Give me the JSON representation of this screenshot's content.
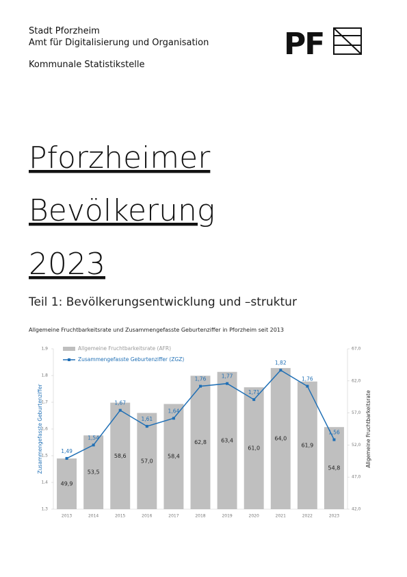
{
  "header": {
    "lines": [
      "Stadt Pforzheim",
      "Amt für Digitalisierung und Organisation",
      "Kommunale Statistikstelle"
    ],
    "logo": "PF"
  },
  "title_lines": [
    "Pforzheimer",
    "Bevölkerung",
    "2023"
  ],
  "subtitle": "Teil 1: Bevölkerungsentwicklung und –struktur",
  "chart_data": {
    "type": "bar",
    "title": "Allgemeine Fruchtbarkeitsrate und Zusammengefasste Geburtenziffer in Pforzheim seit 2013",
    "categories": [
      "2013",
      "2014",
      "2015",
      "2016",
      "2017",
      "2018",
      "2019",
      "2020",
      "2021",
      "2022",
      "2023"
    ],
    "series": [
      {
        "name": "Allgemeine Fruchtbarkeitsrate (AFR)",
        "type": "bar",
        "axis": "y2",
        "color": "#bfbfbf",
        "values": [
          49.9,
          53.5,
          58.6,
          57.0,
          58.4,
          62.8,
          63.4,
          61.0,
          64.0,
          61.9,
          54.8
        ],
        "value_labels": [
          "49,9",
          "53,5",
          "58,6",
          "57,0",
          "58,4",
          "62,8",
          "63,4",
          "61,0",
          "64,0",
          "61,9",
          "54,8"
        ]
      },
      {
        "name": "Zusammengefasste Geburtenziffer (ZGZ)",
        "type": "line",
        "color": "#1f6fb5",
        "values": [
          1.49,
          1.54,
          1.67,
          1.61,
          1.64,
          1.76,
          1.77,
          1.71,
          1.82,
          1.76,
          1.56
        ],
        "value_labels": [
          "1,49",
          "1,54",
          "1,67",
          "1,61",
          "1,64",
          "1,76",
          "1,77",
          "1,71",
          "1,82",
          "1,76",
          "1,56"
        ]
      }
    ],
    "ylabel": "Zusammengefasste Geburtenziffer",
    "y2label": "Allgemeine Fruchtbarkeitsrate",
    "ylim": [
      1.3,
      1.9
    ],
    "yticks": [
      {
        "value": 1.3,
        "label": "1,3"
      },
      {
        "value": 1.4,
        "label": "1,4"
      },
      {
        "value": 1.5,
        "label": "1,5"
      },
      {
        "value": 1.6,
        "label": "1,6"
      },
      {
        "value": 1.7,
        "label": "1,7"
      },
      {
        "value": 1.8,
        "label": "1,8"
      },
      {
        "value": 1.9,
        "label": "1,9"
      }
    ],
    "y2lim": [
      42.0,
      67.0
    ],
    "y2ticks": [
      {
        "value": 42.0,
        "label": "42,0"
      },
      {
        "value": 47.0,
        "label": "47,0"
      },
      {
        "value": 52.0,
        "label": "52,0"
      },
      {
        "value": 57.0,
        "label": "57,0"
      },
      {
        "value": 62.0,
        "label": "62,0"
      },
      {
        "value": 67.0,
        "label": "67,0"
      }
    ],
    "legend": "upper left",
    "grid": false
  }
}
